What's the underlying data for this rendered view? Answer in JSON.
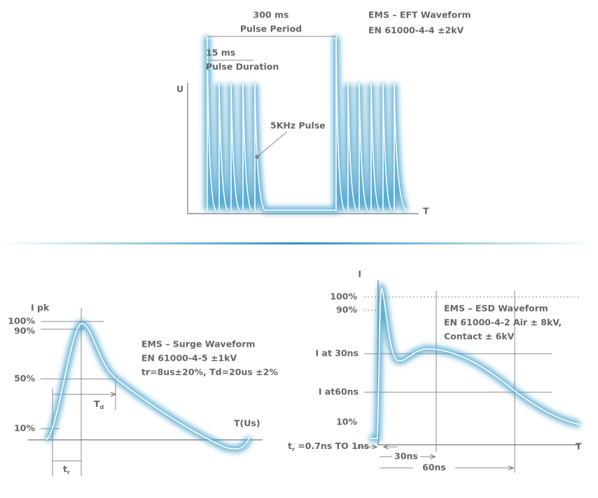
{
  "eft": {
    "title": "EMS – EFT Waveform",
    "standard": "EN 61000-4-4 ±2kV",
    "period_label": "300 ms",
    "period_caption": "Pulse Period",
    "duration_label": "15 ms",
    "duration_caption": "Pulse Duration",
    "y_axis": "U",
    "x_axis": "T",
    "pulse_label": "5KHz Pulse"
  },
  "surge": {
    "title": "EMS – Surge Waveform",
    "standard": "EN 61000-4-5 ±1kV",
    "spec": "tr=8us±20%, Td=20us ±2%",
    "y_axis": "I pk",
    "x_axis": "T(Us)",
    "levels": [
      "100%",
      "90%",
      "50%",
      "10%"
    ],
    "td": {
      "main": "T",
      "sub": "d"
    },
    "tr": {
      "main": "t",
      "sub": "r"
    }
  },
  "esd": {
    "title": "EMS – ESD Waveform",
    "standard": "EN 61000-4-2 Air ± 8kV,",
    "contact": "Contact ± 6kV",
    "y_axis": "I",
    "x_axis": "T",
    "levels": [
      "100%",
      "90%",
      "I at 30ns",
      "I at60ns",
      "10%"
    ],
    "tr": {
      "main": "t",
      "sub": "r",
      "rest": " =0.7ns TO 1ns"
    },
    "t30": "30ns",
    "t60": "60ns"
  }
}
